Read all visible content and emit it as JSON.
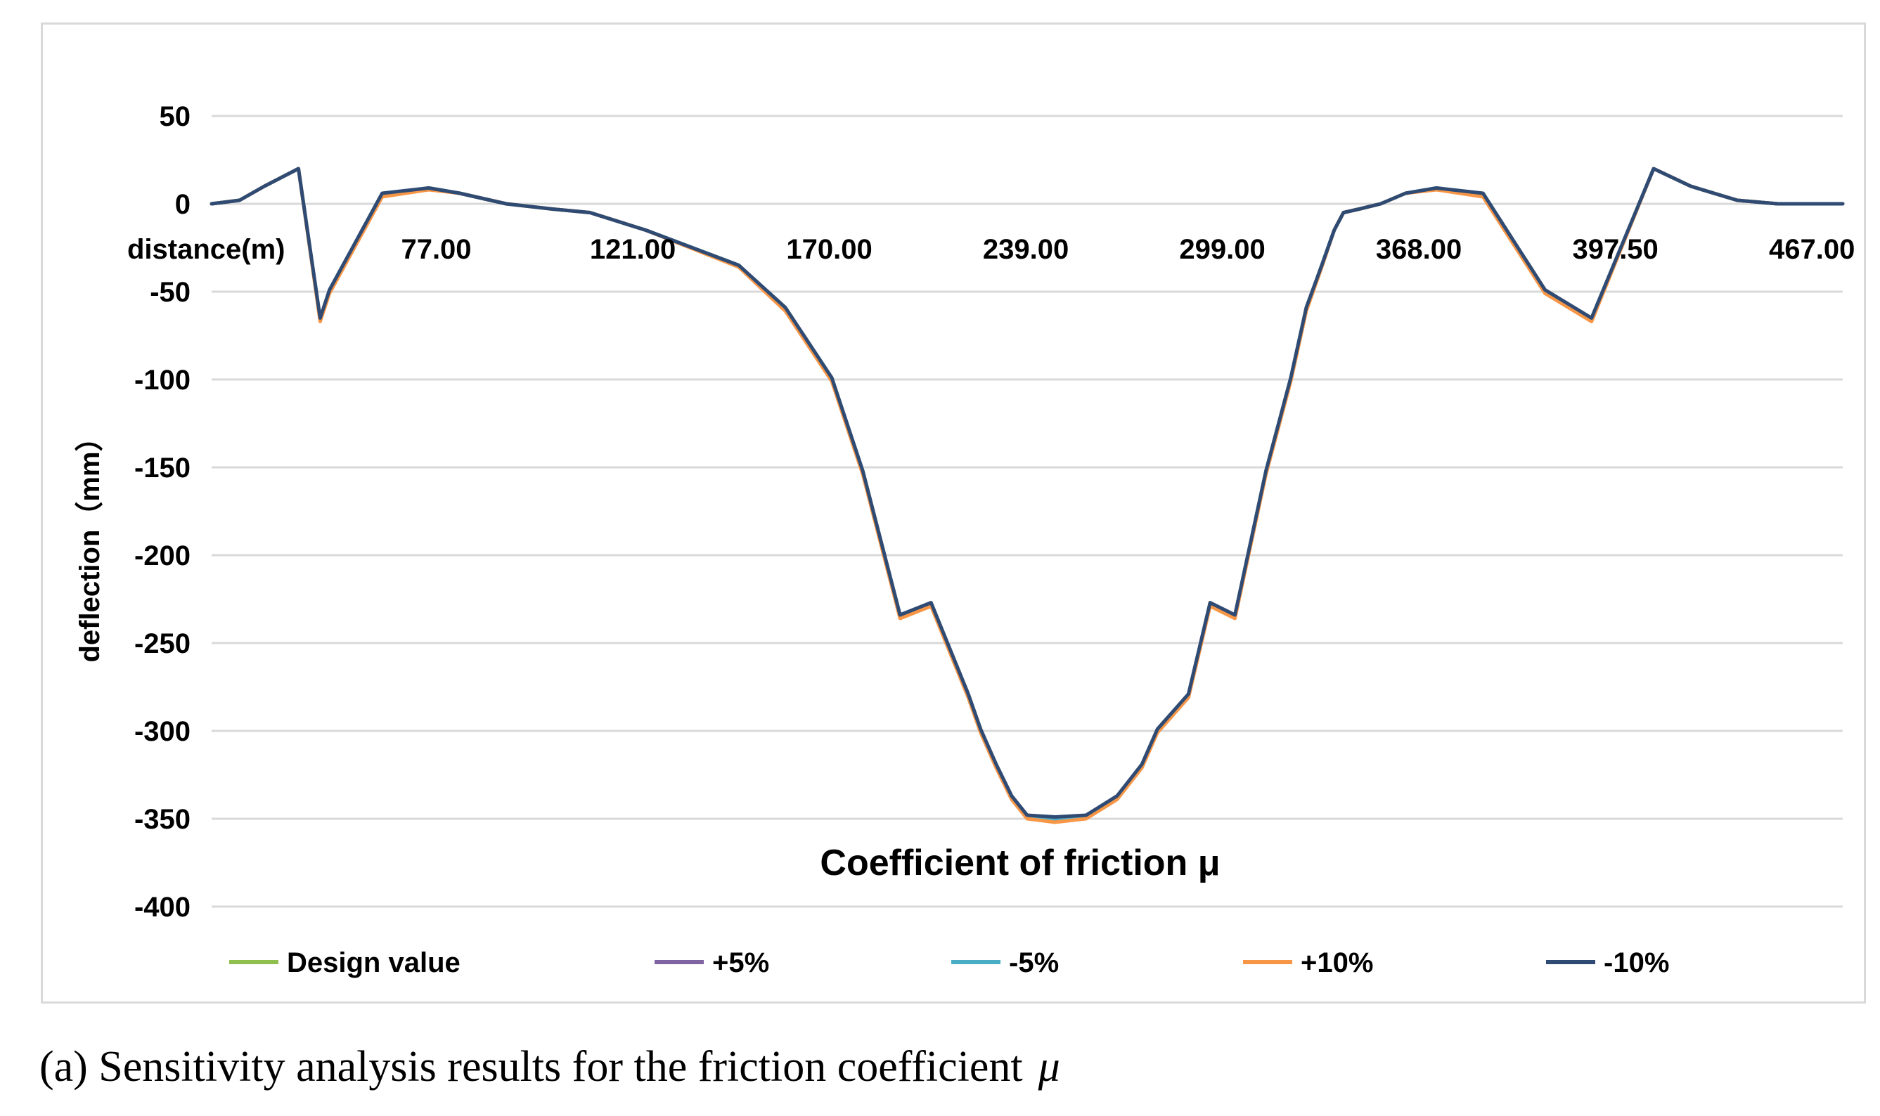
{
  "caption": {
    "text": "(a) Sensitivity analysis results for the friction coefficient",
    "symbol": "μ"
  },
  "chart_data": {
    "type": "line",
    "title": "Coefficient of friction μ",
    "xlabel": "distance(m)",
    "ylabel": "deflection（mm）",
    "ylim": [
      -400,
      50
    ],
    "yticks": [
      50,
      0,
      -50,
      -100,
      -150,
      -200,
      -250,
      -300,
      -350,
      -400
    ],
    "x_axis_position": "y=0",
    "xlim": [
      0,
      526
    ],
    "xtick_labels": [
      "77.00",
      "121.00",
      "170.00",
      "239.00",
      "299.00",
      "368.00",
      "397.50",
      "467.00"
    ],
    "grid": "horizontal",
    "legend_position": "bottom",
    "x": [
      0,
      9,
      17,
      28,
      35,
      38,
      55,
      70,
      80,
      95,
      110,
      122,
      140,
      170,
      185,
      200,
      210,
      222,
      232,
      244,
      248,
      253,
      258,
      263,
      272,
      282,
      292,
      300,
      305,
      315,
      322,
      330,
      340,
      348,
      353,
      358,
      362,
      365,
      370,
      377,
      385,
      395,
      410,
      430,
      445,
      465,
      477,
      492,
      505,
      512,
      522,
      526
    ],
    "series": [
      {
        "name": "Design value",
        "color": "#8fbf4f",
        "values": [
          0,
          2,
          10,
          20,
          -66,
          -50,
          5,
          9,
          6,
          0,
          -3,
          -5,
          -15,
          -35,
          -60,
          -100,
          -153,
          -235,
          -228,
          -280,
          -300,
          -320,
          -338,
          -349,
          -351,
          -349,
          -338,
          -320,
          -300,
          -280,
          -228,
          -235,
          -153,
          -100,
          -60,
          -35,
          -15,
          -5,
          -3,
          0,
          6,
          9,
          5,
          -50,
          -66,
          20,
          10,
          2,
          0,
          0,
          0,
          0
        ]
      },
      {
        "name": "+5%",
        "color": "#8064a2",
        "values": [
          0,
          2,
          10,
          20,
          -66,
          -50,
          5,
          9,
          6,
          0,
          -3,
          -5,
          -15,
          -35,
          -60,
          -100,
          -153,
          -235,
          -228,
          -280,
          -300,
          -320,
          -338,
          -349,
          -351,
          -349,
          -338,
          -320,
          -300,
          -280,
          -228,
          -235,
          -153,
          -100,
          -60,
          -35,
          -15,
          -5,
          -3,
          0,
          6,
          9,
          5,
          -50,
          -66,
          20,
          10,
          2,
          0,
          0,
          0,
          0
        ]
      },
      {
        "name": "-5%",
        "color": "#4bacc6",
        "values": [
          0,
          2,
          10,
          20,
          -66,
          -50,
          5,
          9,
          6,
          0,
          -3,
          -5,
          -15,
          -35,
          -60,
          -100,
          -153,
          -235,
          -228,
          -280,
          -300,
          -320,
          -338,
          -349,
          -350,
          -349,
          -338,
          -320,
          -300,
          -280,
          -228,
          -235,
          -153,
          -100,
          -60,
          -35,
          -15,
          -5,
          -3,
          0,
          6,
          9,
          5,
          -50,
          -66,
          20,
          10,
          2,
          0,
          0,
          0,
          0
        ]
      },
      {
        "name": "+10%",
        "color": "#f79646",
        "values": [
          0,
          2,
          10,
          20,
          -67,
          -51,
          4,
          8,
          6,
          0,
          -3,
          -5,
          -15,
          -36,
          -61,
          -101,
          -154,
          -236,
          -229,
          -281,
          -301,
          -321,
          -339,
          -350,
          -352,
          -350,
          -339,
          -321,
          -301,
          -281,
          -229,
          -236,
          -154,
          -101,
          -61,
          -36,
          -15,
          -5,
          -3,
          0,
          6,
          8,
          4,
          -51,
          -67,
          20,
          10,
          2,
          0,
          0,
          0,
          0
        ]
      },
      {
        "name": "-10%",
        "color": "#2f4b73",
        "values": [
          0,
          2,
          10,
          20,
          -65,
          -49,
          6,
          9,
          6,
          0,
          -3,
          -5,
          -15,
          -35,
          -59,
          -99,
          -152,
          -234,
          -227,
          -279,
          -299,
          -319,
          -337,
          -348,
          -349,
          -348,
          -337,
          -319,
          -299,
          -279,
          -227,
          -234,
          -152,
          -99,
          -59,
          -35,
          -15,
          -5,
          -3,
          0,
          6,
          9,
          6,
          -49,
          -65,
          20,
          10,
          2,
          0,
          0,
          0,
          0
        ]
      }
    ]
  }
}
